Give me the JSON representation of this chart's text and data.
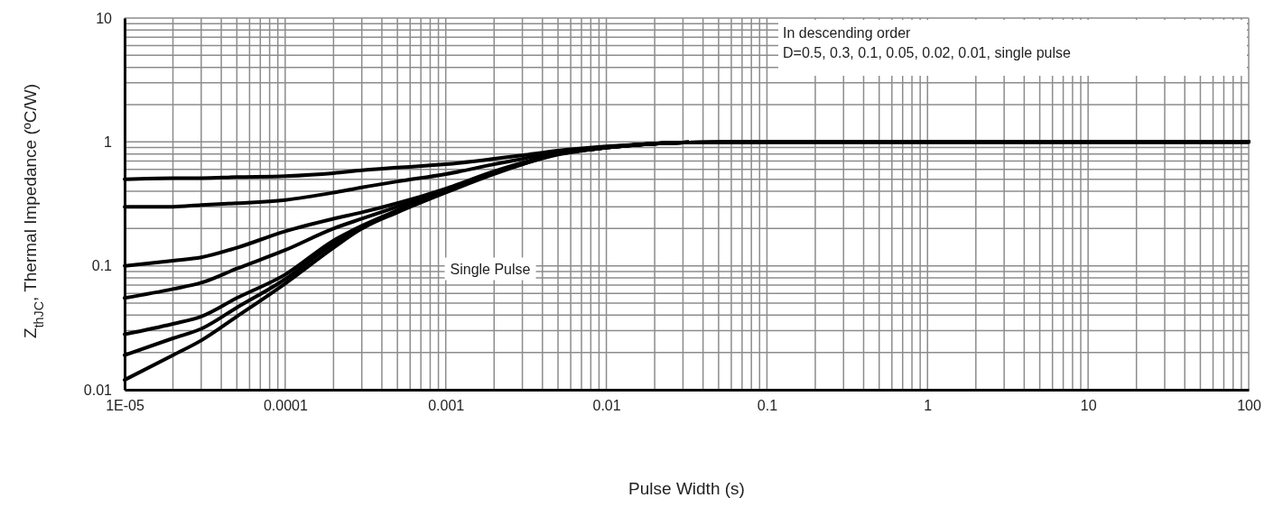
{
  "chart_data": {
    "type": "line",
    "xlabel": "Pulse Width (s)",
    "ylabel": "Z$_{thJC}$,  Thermal Impedance (ºC/W)",
    "log": "xy",
    "grid": true,
    "marker": "none",
    "line_style": "solid",
    "xlim": [
      1e-05,
      100
    ],
    "xticks": [
      {
        "value": 1e-05,
        "label": "1E-05"
      },
      0.0001,
      0.001,
      0.01,
      0.1,
      1,
      10,
      100
    ],
    "ylim": [
      0.01,
      10
    ],
    "yticks": [
      0.01,
      0.1,
      1,
      10
    ],
    "x": [
      1e-05,
      2e-05,
      3e-05,
      5e-05,
      0.0001,
      0.0002,
      0.0003,
      0.0005,
      0.001,
      0.002,
      0.003,
      0.005,
      0.01,
      0.02,
      0.03,
      0.1,
      1,
      10,
      100
    ],
    "series": [
      {
        "color": "#000000",
        "values": [
          0.5,
          0.51,
          0.51,
          0.52,
          0.53,
          0.56,
          0.59,
          0.62,
          0.66,
          0.73,
          0.78,
          0.85,
          0.92,
          0.97,
          0.99,
          1,
          1,
          1,
          1
        ]
      },
      {
        "color": "#000000",
        "values": [
          0.3,
          0.3,
          0.31,
          0.32,
          0.34,
          0.39,
          0.43,
          0.48,
          0.55,
          0.66,
          0.73,
          0.83,
          0.91,
          0.97,
          0.99,
          1,
          1,
          1,
          1
        ]
      },
      {
        "color": "#000000",
        "values": [
          0.1,
          0.11,
          0.117,
          0.14,
          0.19,
          0.24,
          0.27,
          0.32,
          0.42,
          0.58,
          0.68,
          0.8,
          0.9,
          0.97,
          0.99,
          1,
          1,
          1,
          1
        ]
      },
      {
        "color": "#000000",
        "values": [
          0.055,
          0.065,
          0.073,
          0.095,
          0.134,
          0.2,
          0.24,
          0.3,
          0.41,
          0.57,
          0.67,
          0.8,
          0.9,
          0.97,
          0.99,
          1,
          1,
          1,
          1
        ]
      },
      {
        "color": "#000000",
        "values": [
          0.028,
          0.034,
          0.039,
          0.055,
          0.085,
          0.16,
          0.21,
          0.28,
          0.4,
          0.56,
          0.67,
          0.8,
          0.9,
          0.97,
          0.99,
          1,
          1,
          1,
          1
        ]
      },
      {
        "color": "#000000",
        "values": [
          0.019,
          0.026,
          0.031,
          0.046,
          0.078,
          0.15,
          0.2,
          0.28,
          0.4,
          0.56,
          0.66,
          0.8,
          0.9,
          0.97,
          0.99,
          1,
          1,
          1,
          1
        ]
      },
      {
        "color": "#000000",
        "values": [
          0.012,
          0.019,
          0.025,
          0.039,
          0.072,
          0.14,
          0.2,
          0.27,
          0.39,
          0.55,
          0.66,
          0.79,
          0.9,
          0.97,
          0.99,
          1,
          1,
          1,
          1
        ]
      }
    ],
    "annotations": [
      "In descending order\nD=0.5, 0.3, 0.1, 0.05, 0.02, 0.01, single pulse",
      "Single Pulse"
    ]
  }
}
